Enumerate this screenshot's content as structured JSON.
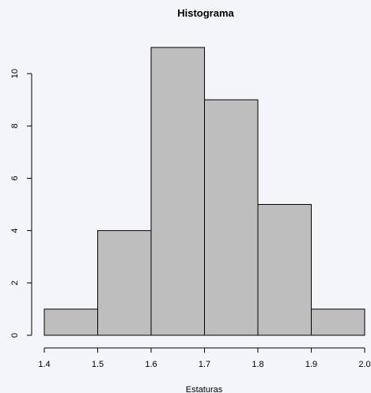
{
  "chart_data": {
    "type": "bar",
    "subtype": "histogram",
    "title": "Histograma",
    "xlabel": "Estaturas",
    "ylabel": "",
    "bins": [
      {
        "from": 1.4,
        "to": 1.5,
        "count": 1
      },
      {
        "from": 1.5,
        "to": 1.6,
        "count": 4
      },
      {
        "from": 1.6,
        "to": 1.7,
        "count": 11
      },
      {
        "from": 1.7,
        "to": 1.8,
        "count": 9
      },
      {
        "from": 1.8,
        "to": 1.9,
        "count": 5
      },
      {
        "from": 1.9,
        "to": 2.0,
        "count": 1
      }
    ],
    "x_ticks": [
      "1.4",
      "1.5",
      "1.6",
      "1.7",
      "1.8",
      "1.9",
      "2.0"
    ],
    "y_ticks": [
      "0",
      "2",
      "4",
      "6",
      "8",
      "10"
    ],
    "xlim": [
      1.4,
      2.0
    ],
    "ylim": [
      0,
      11
    ],
    "grid": false,
    "legend": "none",
    "bar_color": "#bebebe",
    "background_color": "#f4f5fa"
  }
}
